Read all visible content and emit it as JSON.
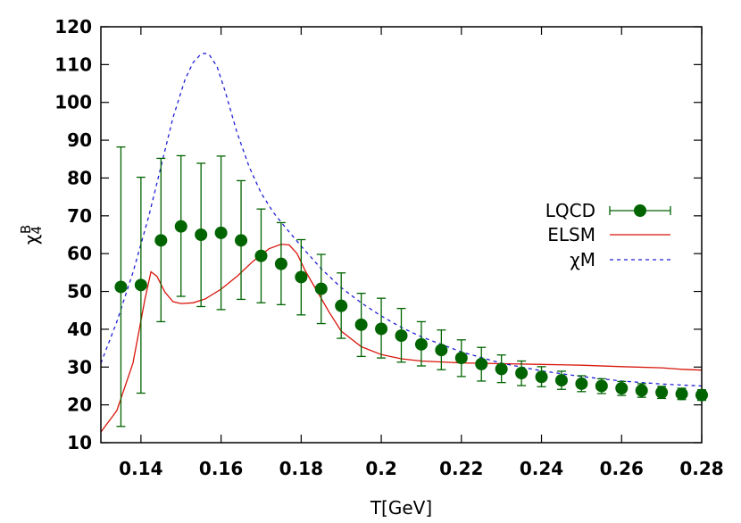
{
  "chart_data": {
    "type": "scatter",
    "xlabel": "T[GeV]",
    "ylabel": {
      "base": "χ",
      "sub": "4",
      "sup": "B"
    },
    "xlim": [
      0.13,
      0.28
    ],
    "ylim": [
      10,
      120
    ],
    "xticks": [
      0.14,
      0.16,
      0.18,
      0.2,
      0.22,
      0.24,
      0.26,
      0.28
    ],
    "xtick_labels": [
      "0.14",
      "0.16",
      "0.18",
      "0.2",
      "0.22",
      "0.24",
      "0.26",
      "0.28"
    ],
    "yticks": [
      10,
      20,
      30,
      40,
      50,
      60,
      70,
      80,
      90,
      100,
      110,
      120
    ],
    "ytick_labels": [
      "10",
      "20",
      "30",
      "40",
      "50",
      "60",
      "70",
      "80",
      "90",
      "100",
      "110",
      "120"
    ],
    "legend_position": "right",
    "series": [
      {
        "name": "LQCD",
        "kind": "points-errorbars",
        "color": "#006400",
        "x": [
          0.135,
          0.14,
          0.145,
          0.15,
          0.155,
          0.16,
          0.165,
          0.17,
          0.175,
          0.18,
          0.185,
          0.19,
          0.195,
          0.2,
          0.205,
          0.21,
          0.215,
          0.22,
          0.225,
          0.23,
          0.235,
          0.24,
          0.245,
          0.25,
          0.255,
          0.26,
          0.265,
          0.27,
          0.275,
          0.28
        ],
        "y": [
          51.2,
          51.7,
          63.5,
          67.2,
          65.0,
          65.5,
          63.5,
          59.4,
          57.3,
          53.8,
          50.7,
          46.2,
          41.2,
          40.1,
          38.3,
          36.0,
          34.5,
          32.4,
          30.8,
          29.5,
          28.4,
          27.4,
          26.5,
          25.6,
          25.0,
          24.4,
          23.8,
          23.3,
          22.9,
          22.6
        ],
        "err_low": [
          14.3,
          23.1,
          42.0,
          48.7,
          46.0,
          45.2,
          47.9,
          47.0,
          46.5,
          43.8,
          41.5,
          37.6,
          32.8,
          32.4,
          31.3,
          30.3,
          29.3,
          27.5,
          26.3,
          25.9,
          25.1,
          24.8,
          24.1,
          23.5,
          23.0,
          22.5,
          22.0,
          21.7,
          21.4,
          21.2
        ],
        "err_high": [
          88.2,
          80.2,
          85.2,
          85.9,
          83.9,
          85.8,
          79.3,
          71.8,
          68.2,
          63.7,
          59.8,
          54.9,
          49.5,
          48.2,
          45.5,
          42.0,
          39.8,
          37.2,
          35.2,
          33.2,
          31.6,
          30.1,
          28.9,
          27.7,
          26.9,
          26.2,
          25.6,
          24.9,
          24.4,
          24.0
        ]
      },
      {
        "name": "ELSM",
        "kind": "line-solid",
        "color": "#d8150a",
        "x": [
          0.13,
          0.134,
          0.138,
          0.141,
          0.1425,
          0.144,
          0.146,
          0.148,
          0.15,
          0.153,
          0.156,
          0.16,
          0.164,
          0.168,
          0.172,
          0.175,
          0.177,
          0.179,
          0.181,
          0.184,
          0.187,
          0.19,
          0.195,
          0.2,
          0.205,
          0.21,
          0.22,
          0.23,
          0.24,
          0.25,
          0.26,
          0.27,
          0.275,
          0.28
        ],
        "y": [
          12.8,
          18.5,
          31.0,
          48.0,
          55.2,
          54.0,
          49.8,
          47.3,
          46.8,
          47.0,
          48.0,
          50.6,
          54.0,
          58.0,
          61.3,
          62.5,
          62.3,
          60.0,
          55.5,
          50.0,
          44.5,
          39.5,
          35.4,
          33.3,
          32.2,
          31.6,
          31.1,
          30.9,
          30.7,
          30.5,
          30.1,
          29.8,
          29.4,
          29.2
        ]
      },
      {
        "name": "χM",
        "kind": "line-dashed",
        "color": "#1f1fd6",
        "x": [
          0.13,
          0.134,
          0.138,
          0.142,
          0.145,
          0.148,
          0.151,
          0.153,
          0.155,
          0.156,
          0.157,
          0.159,
          0.161,
          0.164,
          0.167,
          0.17,
          0.173,
          0.176,
          0.18,
          0.185,
          0.19,
          0.195,
          0.2,
          0.205,
          0.21,
          0.22,
          0.23,
          0.24,
          0.25,
          0.26,
          0.27,
          0.28
        ],
        "y": [
          31.0,
          42.0,
          55.0,
          70.0,
          83.0,
          96.0,
          106.0,
          110.5,
          112.8,
          113.0,
          112.7,
          109.5,
          103.0,
          92.0,
          83.0,
          76.0,
          71.0,
          67.0,
          62.0,
          56.0,
          51.0,
          47.0,
          43.5,
          40.5,
          38.0,
          34.0,
          31.0,
          29.0,
          27.5,
          26.3,
          25.5,
          25.0
        ]
      }
    ]
  }
}
